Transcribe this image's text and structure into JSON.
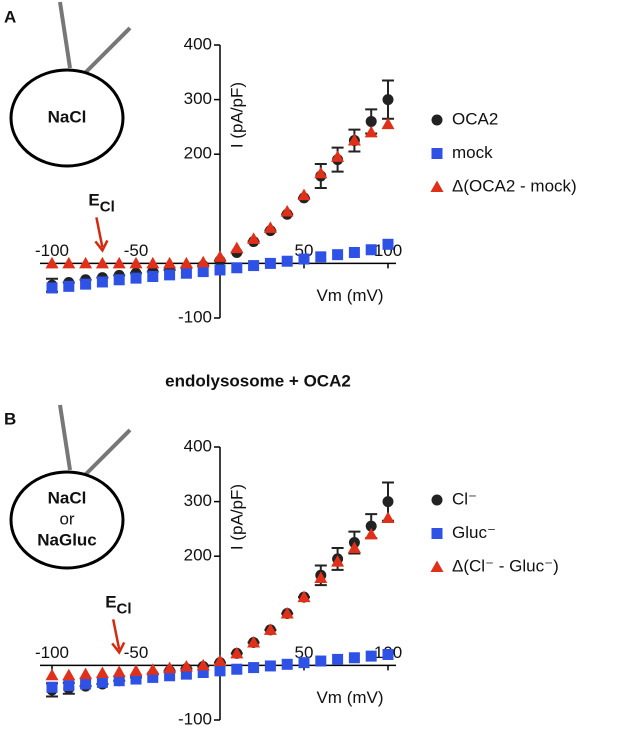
{
  "chart_data": [
    {
      "type": "scatter",
      "panel_label": "A",
      "cell_labels": [
        {
          "text": "NaCl",
          "color": "#000000"
        }
      ],
      "x_label": "Vm (mV)",
      "y_label": "I (pA/pF)",
      "annotation": {
        "text": "E",
        "sub": "Cl",
        "color": "#d62a10",
        "x": -70
      },
      "x": [
        -100,
        -90,
        -80,
        -70,
        -60,
        -50,
        -40,
        -30,
        -20,
        -10,
        0,
        10,
        20,
        30,
        40,
        50,
        60,
        70,
        80,
        90,
        100
      ],
      "xlim": [
        -100,
        100
      ],
      "xticks": [
        -100,
        -50,
        50,
        100
      ],
      "ylim": [
        -100,
        400
      ],
      "yticks": [
        -100,
        200,
        300,
        400
      ],
      "legend": "right",
      "series": [
        {
          "name": "OCA2",
          "color": "#222222",
          "marker": "circle",
          "values": [
            -40,
            -35,
            -30,
            -26,
            -22,
            -18,
            -15,
            -12,
            -8,
            -4,
            5,
            20,
            40,
            60,
            90,
            120,
            160,
            190,
            225,
            260,
            300
          ],
          "errors": [
            12,
            0,
            0,
            0,
            0,
            0,
            0,
            0,
            0,
            0,
            0,
            0,
            0,
            0,
            0,
            0,
            22,
            22,
            20,
            22,
            35
          ]
        },
        {
          "name": "mock",
          "color": "#2f52e6",
          "marker": "square",
          "values": [
            -45,
            -42,
            -38,
            -34,
            -30,
            -27,
            -24,
            -21,
            -18,
            -15,
            -12,
            -8,
            -4,
            0,
            4,
            8,
            12,
            16,
            20,
            25,
            35
          ]
        },
        {
          "name": "Δ(OCA2 - mock)",
          "color": "#e0301a",
          "marker": "triangle",
          "values": [
            0,
            0,
            0,
            0,
            0,
            0,
            0,
            0,
            0,
            2,
            12,
            28,
            45,
            65,
            95,
            125,
            165,
            195,
            225,
            240,
            255
          ]
        }
      ]
    },
    {
      "type": "scatter",
      "panel_label": "B",
      "title": "endolysosome + OCA2",
      "cell_labels": [
        {
          "text": "NaCl",
          "color": "#000000"
        },
        {
          "text": "or",
          "color": "#000000"
        },
        {
          "text": "NaGluc",
          "color": "#2a3fd0"
        }
      ],
      "x_label": "Vm (mV)",
      "y_label": "I (pA/pF)",
      "annotation": {
        "text": "E",
        "sub": "Cl",
        "color": "#d62a10",
        "x": -60
      },
      "x": [
        -100,
        -90,
        -80,
        -70,
        -60,
        -50,
        -40,
        -30,
        -20,
        -10,
        0,
        10,
        20,
        30,
        40,
        50,
        60,
        70,
        80,
        90,
        100
      ],
      "xlim": [
        -100,
        100
      ],
      "xticks": [
        -100,
        -50,
        50,
        100
      ],
      "ylim": [
        -100,
        400
      ],
      "yticks": [
        -100,
        200,
        300,
        400
      ],
      "legend": "right",
      "series": [
        {
          "name": "Cl⁻",
          "color": "#222222",
          "marker": "circle",
          "values": [
            -45,
            -42,
            -38,
            -34,
            -28,
            -22,
            -16,
            -10,
            -6,
            -2,
            5,
            22,
            42,
            65,
            95,
            125,
            165,
            195,
            225,
            255,
            300
          ],
          "errors": [
            12,
            10,
            0,
            0,
            0,
            0,
            0,
            0,
            0,
            0,
            0,
            0,
            0,
            0,
            0,
            0,
            18,
            20,
            20,
            22,
            35
          ]
        },
        {
          "name": "Gluc⁻",
          "color": "#2f52e6",
          "marker": "square",
          "values": [
            -40,
            -37,
            -34,
            -31,
            -28,
            -25,
            -22,
            -19,
            -16,
            -13,
            -10,
            -7,
            -4,
            -1,
            2,
            5,
            8,
            11,
            14,
            17,
            20
          ]
        },
        {
          "name": "Δ(Cl⁻ - Gluc⁻)",
          "color": "#e0301a",
          "marker": "triangle",
          "values": [
            -18,
            -18,
            -16,
            -14,
            -12,
            -10,
            -8,
            -5,
            -2,
            0,
            8,
            22,
            42,
            65,
            95,
            125,
            160,
            190,
            215,
            240,
            270
          ]
        }
      ]
    }
  ]
}
